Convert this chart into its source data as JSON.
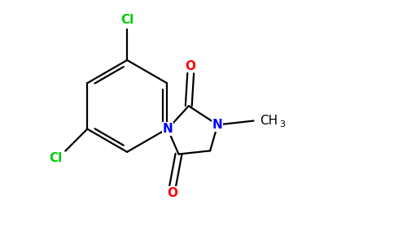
{
  "bg_color": "#ffffff",
  "atom_color_N": "#0000ff",
  "atom_color_O": "#ff0000",
  "atom_color_Cl": "#00cc00",
  "atom_color_C": "#000000",
  "bond_color": "#000000",
  "bond_lw": 1.6,
  "font_size_atom": 11,
  "font_size_sub": 8,
  "xlim": [
    0,
    9.5
  ],
  "ylim": [
    0,
    6.0
  ]
}
